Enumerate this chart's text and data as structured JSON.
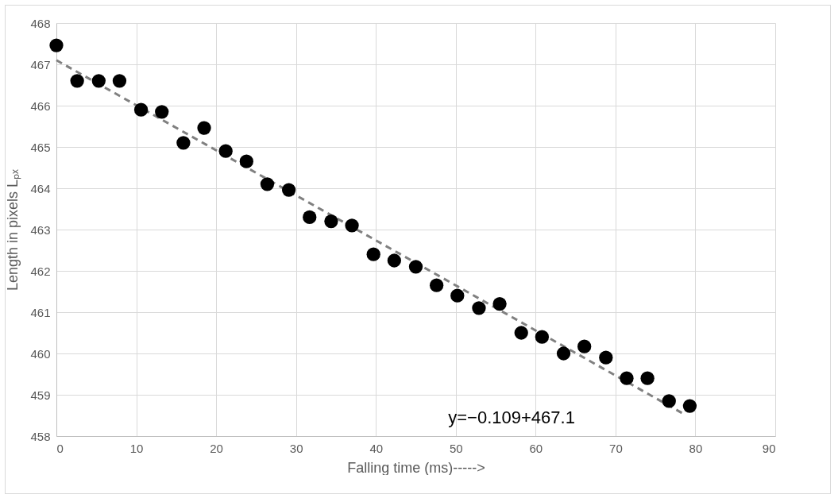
{
  "chart_data": {
    "type": "scatter",
    "xlabel": "Falling time (ms)----->",
    "ylabel": "Length in pixels Lₚₓ",
    "series": [
      {
        "type": "scatter",
        "color": "#000000",
        "marker": "circle",
        "x": [
          0,
          2.6,
          5.3,
          7.9,
          10.6,
          13.2,
          15.9,
          18.5,
          21.2,
          23.8,
          26.4,
          29.1,
          31.7,
          34.4,
          37.0,
          39.7,
          42.3,
          45.0,
          47.6,
          50.2,
          52.9,
          55.5,
          58.2,
          60.8,
          63.5,
          66.1,
          68.8,
          71.4,
          74.0,
          76.7,
          79.3
        ],
        "values": [
          467.46,
          466.6,
          466.6,
          466.6,
          465.9,
          465.85,
          465.1,
          465.46,
          464.9,
          464.65,
          464.1,
          463.96,
          463.3,
          463.2,
          463.1,
          462.4,
          462.25,
          462.1,
          461.65,
          461.4,
          461.1,
          461.2,
          460.5,
          460.4,
          460.0,
          460.17,
          459.9,
          459.4,
          459.4,
          458.85,
          458.73
        ]
      },
      {
        "type": "line",
        "color": "#808080",
        "line_style": "dashed",
        "x": [
          0,
          78.5
        ],
        "values": [
          467.1,
          458.54
        ]
      }
    ],
    "annotations": [
      "y=−0.109+467.1"
    ],
    "xlim": [
      0,
      90
    ],
    "xticks": [
      0,
      10,
      20,
      30,
      40,
      50,
      60,
      70,
      80,
      90
    ],
    "ylim": [
      458,
      468
    ],
    "yticks": [
      458,
      459,
      460,
      461,
      462,
      463,
      464,
      465,
      466,
      467,
      468
    ],
    "grid": true
  }
}
